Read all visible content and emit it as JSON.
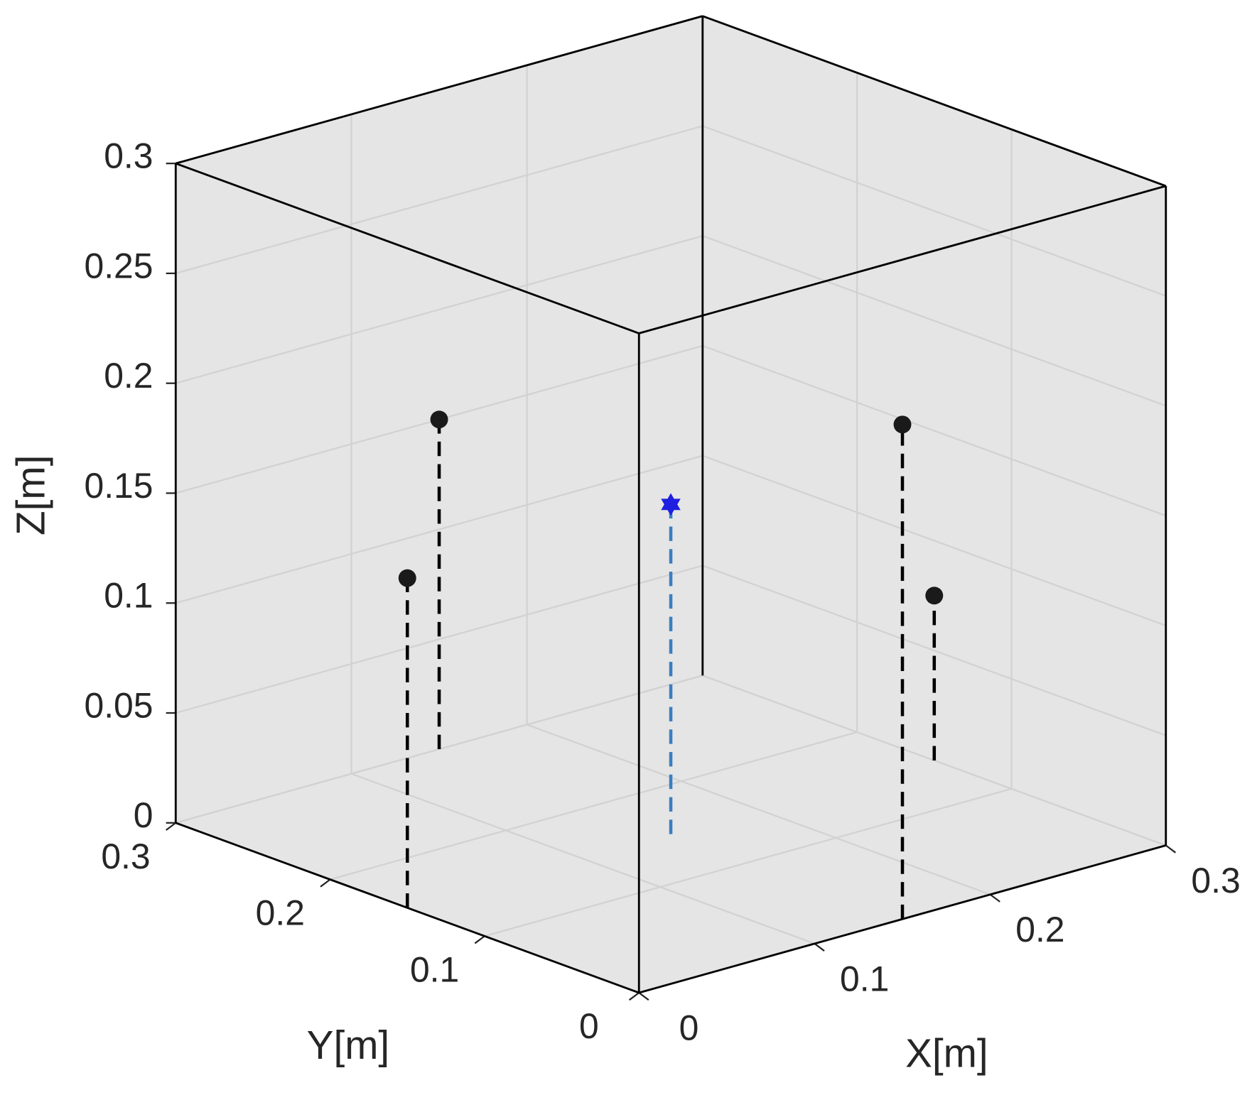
{
  "chart_data": {
    "type": "scatter3d",
    "xlabel": "X[m]",
    "ylabel": "Y[m]",
    "zlabel": "Z[m]",
    "xlim": [
      0,
      0.3
    ],
    "ylim": [
      0,
      0.3
    ],
    "zlim": [
      0,
      0.3
    ],
    "xticks": [
      0,
      0.1,
      0.2,
      0.3
    ],
    "yticks": [
      0,
      0.1,
      0.2,
      0.3
    ],
    "zticks": [
      0,
      0.05,
      0.1,
      0.15,
      0.2,
      0.25,
      0.3
    ],
    "grid": true,
    "box": true,
    "stems": true,
    "series": [
      {
        "color": "#1a1a1a",
        "stem_color": "#000000",
        "marker": "o",
        "x": [
          0,
          0.15,
          0.15,
          0.3
        ],
        "y": [
          0.15,
          0.3,
          0,
          0.15
        ],
        "z": [
          0.15,
          0.15,
          0.225,
          0.075
        ]
      },
      {
        "color": "#1f1fe0",
        "stem_color": "#3a7fc0",
        "marker": "*",
        "x": [
          0.15
        ],
        "y": [
          0.15
        ],
        "z": [
          0.15
        ]
      }
    ]
  }
}
